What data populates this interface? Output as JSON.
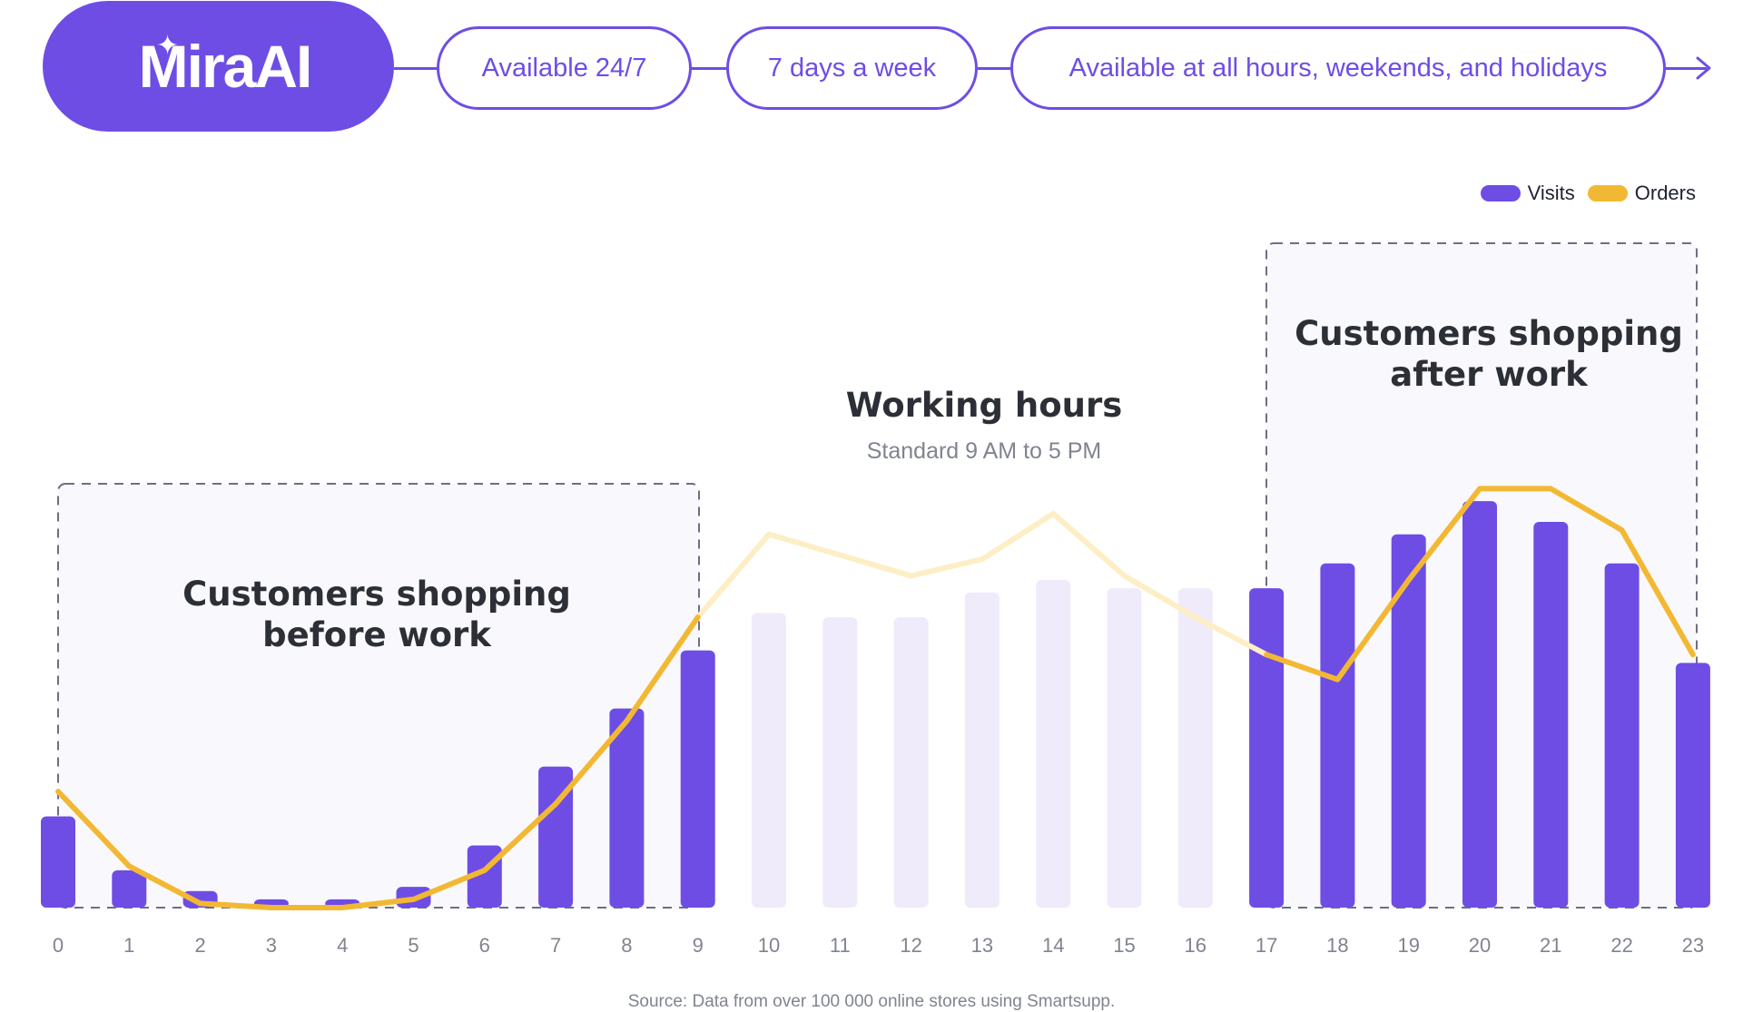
{
  "header": {
    "logo_text": "MiraAI",
    "pills": [
      "Available 24/7",
      "7 days a week",
      "Available at all hours, weekends, and holidays"
    ]
  },
  "colors": {
    "brand": "#6e4de5",
    "visits_bar": "#6e4de5",
    "visits_bar_faded": "#efebfa",
    "orders_line": "#f3b833",
    "orders_line_faded": "#fdeec5",
    "annotation_box_fill": "#f9f9fd"
  },
  "legend": [
    {
      "label": "Visits",
      "color": "#6e4de5"
    },
    {
      "label": "Orders",
      "color": "#f3b833"
    }
  ],
  "annotations": {
    "before_work": {
      "line1": "Customers shopping",
      "line2": "before work"
    },
    "working_hours": {
      "title": "Working hours",
      "subtitle": "Standard 9 AM to 5 PM"
    },
    "after_work": {
      "line1": "Customers shopping",
      "line2": "after work"
    }
  },
  "source": "Source: Data from over 100 000 online stores using Smartsupp.",
  "chart_data": {
    "type": "bar",
    "categories": [
      "0",
      "1",
      "2",
      "3",
      "4",
      "5",
      "6",
      "7",
      "8",
      "9",
      "10",
      "11",
      "12",
      "13",
      "14",
      "15",
      "16",
      "17",
      "18",
      "19",
      "20",
      "21",
      "22",
      "23"
    ],
    "series": [
      {
        "name": "Visits",
        "type": "bar",
        "values": [
          22,
          9,
          4,
          2,
          2,
          5,
          15,
          34,
          48,
          62,
          71,
          70,
          70,
          76,
          79,
          77,
          77,
          77,
          83,
          90,
          98,
          93,
          83,
          59
        ]
      },
      {
        "name": "Orders",
        "type": "line",
        "values": [
          28,
          10,
          1,
          0,
          0,
          2,
          9,
          25,
          45,
          70,
          90,
          85,
          80,
          84,
          95,
          80,
          70,
          61,
          55,
          79,
          101,
          101,
          91,
          61
        ]
      }
    ],
    "highlighted_hours": {
      "before_work": [
        0,
        9
      ],
      "working_hours": [
        10,
        16
      ],
      "after_work": [
        17,
        23
      ]
    },
    "xlabel": "",
    "ylabel": "",
    "grid": false,
    "legend_position": "top-right"
  }
}
